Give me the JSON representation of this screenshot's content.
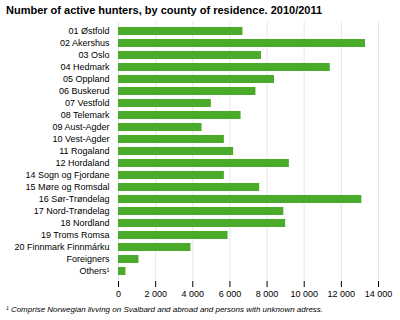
{
  "chart_data": {
    "type": "bar",
    "orientation": "horizontal",
    "title": "Number of active hunters, by county of residence. 2010/2011",
    "categories": [
      "01 Østfold",
      "02 Akershus",
      "03 Oslo",
      "04 Hedmark",
      "05 Oppland",
      "06 Buskerud",
      "07 Vestfold",
      "08 Telemark",
      "09 Aust-Agder",
      "10 Vest-Agder",
      "11 Rogaland",
      "12 Hordaland",
      "14 Sogn og Fjordane",
      "15 Møre og Romsdal",
      "16 Sør-Trøndelag",
      "17 Nord-Trøndelag",
      "18 Nordland",
      "19 Troms Romsa",
      "20 Finnmark Finnmárku",
      "Foreigners",
      "Others¹"
    ],
    "values": [
      6700,
      13300,
      7700,
      11400,
      8400,
      7400,
      5000,
      6600,
      4500,
      5700,
      6200,
      9200,
      5700,
      7600,
      13100,
      8900,
      9000,
      5900,
      3900,
      1100,
      400
    ],
    "color": "#4aaa2a",
    "xlim": [
      0,
      14000
    ],
    "xticks": [
      0,
      {
        "value": 2000,
        "label": "2 000"
      },
      {
        "value": 4000,
        "label": "4 000"
      },
      {
        "value": 6000,
        "label": "6 000"
      },
      {
        "value": 8000,
        "label": "8 000"
      },
      {
        "value": 10000,
        "label": "10 000"
      },
      {
        "value": 12000,
        "label": "12 000"
      },
      {
        "value": 14000,
        "label": "14 000"
      }
    ],
    "grid": true,
    "footnote": "¹ Comprise Norwegian livving on Svalbard and abroad and persons with unknown adress."
  }
}
